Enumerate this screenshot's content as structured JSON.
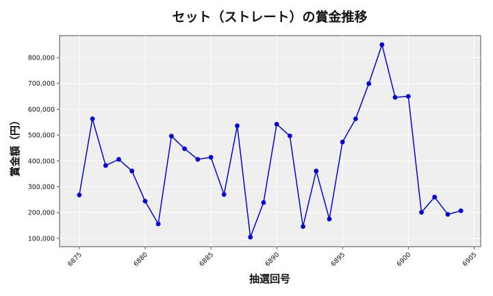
{
  "chart_data": {
    "type": "line",
    "title": "セット（ストレート）の賞金推移",
    "xlabel": "抽選回号",
    "ylabel": "賞金額（円）",
    "xlim": [
      6873.5,
      6905.5
    ],
    "ylim": [
      68000,
      885000
    ],
    "x_ticks": [
      6875,
      6880,
      6885,
      6890,
      6895,
      6900,
      6905
    ],
    "y_ticks": [
      100000,
      200000,
      300000,
      400000,
      500000,
      600000,
      700000,
      800000
    ],
    "y_tick_labels": [
      "100,000",
      "200,000",
      "300,000",
      "400,000",
      "500,000",
      "600,000",
      "700,000",
      "800,000"
    ],
    "grid": true,
    "series_color": "#0000dd",
    "background_color": "#efefef",
    "x": [
      6875,
      6876,
      6877,
      6878,
      6879,
      6880,
      6881,
      6882,
      6883,
      6884,
      6885,
      6886,
      6887,
      6888,
      6889,
      6890,
      6891,
      6892,
      6893,
      6894,
      6895,
      6896,
      6897,
      6898,
      6899,
      6900,
      6901,
      6902,
      6903,
      6904
    ],
    "y": [
      268000,
      563000,
      382000,
      406000,
      361000,
      244000,
      156000,
      496000,
      447000,
      406000,
      414000,
      270000,
      536000,
      105000,
      239000,
      542000,
      497000,
      146000,
      361000,
      175000,
      473000,
      563000,
      699000,
      850000,
      646000,
      650000,
      201000,
      260000,
      193000,
      207000
    ]
  }
}
